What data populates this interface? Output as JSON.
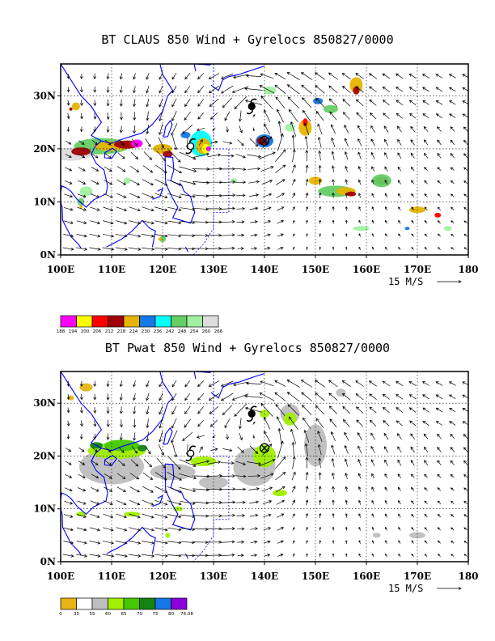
{
  "panels": [
    {
      "id": "top",
      "title": "BT CLAUS 850 Wind + Gyrelocs 850827/0000",
      "vector_key_label": "15 M/S",
      "legend_values": [
        "188",
        "194",
        "200",
        "206",
        "212",
        "218",
        "224",
        "230",
        "236",
        "242",
        "248",
        "254",
        "260",
        "266"
      ],
      "legend_colors": [
        "#ff00ff",
        "#ffff00",
        "#ff0000",
        "#a00000",
        "#e6b400",
        "#1478e6",
        "#00ffff",
        "#64cd64",
        "#a0f0a0",
        "#dcdcdc"
      ]
    },
    {
      "id": "bottom",
      "title": "BT Pwat 850 Wind + Gyrelocs 850827/0000",
      "vector_key_label": "15 M/S",
      "legend_values": [
        "0",
        "35",
        "55",
        "60",
        "65",
        "70",
        "75",
        "80",
        "76.08"
      ],
      "legend_colors": [
        "#e6b414",
        "#ffffff",
        "#bebebe",
        "#a0f000",
        "#46c800",
        "#148214",
        "#1478e6",
        "#8c00dc"
      ]
    }
  ],
  "map": {
    "lon_ticks": [
      "100E",
      "110E",
      "120E",
      "130E",
      "140E",
      "150E",
      "160E",
      "170E",
      "180"
    ],
    "lat_ticks": [
      "0N",
      "10N",
      "20N",
      "30N"
    ],
    "lon_range": [
      100,
      180
    ],
    "lat_range": [
      0,
      36
    ],
    "coast_color": "#0000ff",
    "gyre_markers": [
      {
        "symbol": "typhoon",
        "lon": 137.5,
        "lat": 28
      },
      {
        "symbol": "typhoon-open",
        "lon": 125.5,
        "lat": 20.5
      },
      {
        "symbol": "circle-x",
        "lon": 140,
        "lat": 21.5
      }
    ]
  }
}
